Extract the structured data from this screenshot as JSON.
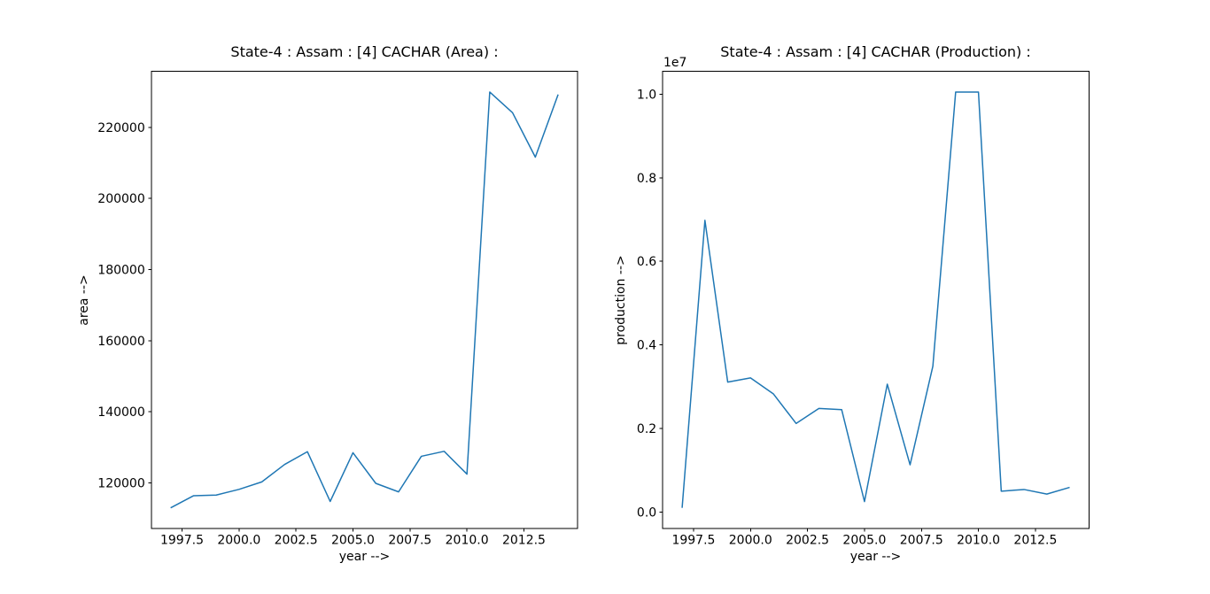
{
  "figure": {
    "background": "#ffffff",
    "axis_color": "#000000",
    "line_color": "#1f77b4"
  },
  "chart_data": [
    {
      "type": "line",
      "title": "State-4 : Assam : [4] CACHAR (Area) :",
      "xlabel": "year -->",
      "ylabel": "area -->",
      "offset_text": "",
      "grid": false,
      "legend": null,
      "line_color": "#1f77b4",
      "x": [
        1997,
        1998,
        1999,
        2000,
        2001,
        2002,
        2003,
        2004,
        2005,
        2006,
        2007,
        2008,
        2009,
        2010,
        2011,
        2012,
        2013,
        2014
      ],
      "y": [
        113000,
        116400,
        116600,
        118200,
        120300,
        125200,
        128800,
        114800,
        128500,
        119900,
        117500,
        127500,
        128900,
        122500,
        229900,
        224100,
        211600,
        229200
      ],
      "xlim": [
        1996.15,
        2014.85
      ],
      "ylim": [
        107155,
        235745
      ],
      "x_ticks": [
        1997.5,
        2000.0,
        2002.5,
        2005.0,
        2007.5,
        2010.0,
        2012.5
      ],
      "x_tick_labels": [
        "1997.5",
        "2000.0",
        "2002.5",
        "2005.0",
        "2007.5",
        "2010.0",
        "2012.5"
      ],
      "y_ticks": [
        120000,
        140000,
        160000,
        180000,
        200000,
        220000
      ],
      "y_tick_labels": [
        "120000",
        "140000",
        "160000",
        "180000",
        "200000",
        "220000"
      ]
    },
    {
      "type": "line",
      "title": "State-4 : Assam : [4] CACHAR (Production) :",
      "xlabel": "year -->",
      "ylabel": "production -->",
      "offset_text": "1e7",
      "grid": false,
      "legend": null,
      "line_color": "#1f77b4",
      "x": [
        1997,
        1998,
        1999,
        2000,
        2001,
        2002,
        2003,
        2004,
        2005,
        2006,
        2007,
        2008,
        2009,
        2010,
        2011,
        2012,
        2013,
        2014
      ],
      "y": [
        100000,
        6980000,
        3110000,
        3210000,
        2830000,
        2120000,
        2480000,
        2450000,
        250000,
        3060000,
        1130000,
        3490000,
        10050000,
        10050000,
        500000,
        540000,
        430000,
        590000
      ],
      "xlim": [
        1996.15,
        2014.85
      ],
      "ylim": [
        -397500,
        10547500
      ],
      "x_ticks": [
        1997.5,
        2000.0,
        2002.5,
        2005.0,
        2007.5,
        2010.0,
        2012.5
      ],
      "x_tick_labels": [
        "1997.5",
        "2000.0",
        "2002.5",
        "2005.0",
        "2007.5",
        "2010.0",
        "2012.5"
      ],
      "y_ticks": [
        0,
        2000000,
        4000000,
        6000000,
        8000000,
        10000000
      ],
      "y_tick_labels": [
        "0.0",
        "0.2",
        "0.4",
        "0.6",
        "0.8",
        "1.0"
      ]
    }
  ]
}
